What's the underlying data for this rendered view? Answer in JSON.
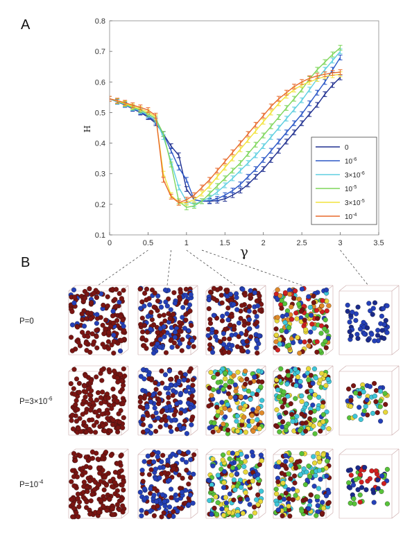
{
  "panel_labels": {
    "a": "A",
    "b": "B"
  },
  "chart_data": {
    "type": "line",
    "xlabel": "γ",
    "ylabel": "H",
    "xlim": [
      0,
      3.5
    ],
    "ylim": [
      0.1,
      0.8
    ],
    "xticks": [
      "0",
      "0.5",
      "1",
      "1.5",
      "2",
      "2.5",
      "3",
      "3.5"
    ],
    "yticks": [
      "0.1",
      "0.2",
      "0.3",
      "0.4",
      "0.5",
      "0.6",
      "0.7",
      "0.8"
    ],
    "error_bars": true,
    "legend_position": "lower-right",
    "x": [
      0.0,
      0.1,
      0.2,
      0.3,
      0.4,
      0.5,
      0.6,
      0.7,
      0.8,
      0.9,
      1.0,
      1.1,
      1.2,
      1.3,
      1.4,
      1.5,
      1.6,
      1.7,
      1.8,
      1.9,
      2.0,
      2.1,
      2.2,
      2.3,
      2.4,
      2.5,
      2.6,
      2.7,
      2.8,
      2.9,
      3.0
    ],
    "series": [
      {
        "name": "0",
        "color": "#1f2f8f",
        "values": [
          0.545,
          0.535,
          0.525,
          0.512,
          0.5,
          0.485,
          0.465,
          0.43,
          0.39,
          0.36,
          0.25,
          0.215,
          0.21,
          0.21,
          0.212,
          0.218,
          0.23,
          0.245,
          0.265,
          0.29,
          0.315,
          0.345,
          0.375,
          0.405,
          0.435,
          0.465,
          0.495,
          0.525,
          0.56,
          0.59,
          0.615
        ]
      },
      {
        "name": "10^-6",
        "color": "#2a56c6",
        "values": [
          0.545,
          0.535,
          0.525,
          0.513,
          0.502,
          0.488,
          0.47,
          0.43,
          0.375,
          0.32,
          0.28,
          0.215,
          0.21,
          0.212,
          0.218,
          0.23,
          0.245,
          0.265,
          0.29,
          0.315,
          0.345,
          0.375,
          0.405,
          0.435,
          0.465,
          0.495,
          0.53,
          0.565,
          0.6,
          0.64,
          0.68
        ]
      },
      {
        "name": "3×10^-6",
        "color": "#5ecfe0",
        "values": [
          0.545,
          0.536,
          0.527,
          0.515,
          0.505,
          0.492,
          0.475,
          0.42,
          0.34,
          0.255,
          0.21,
          0.2,
          0.21,
          0.222,
          0.24,
          0.262,
          0.285,
          0.31,
          0.335,
          0.36,
          0.39,
          0.42,
          0.45,
          0.48,
          0.51,
          0.54,
          0.575,
          0.61,
          0.64,
          0.67,
          0.7
        ]
      },
      {
        "name": "10^-5",
        "color": "#7ed65a",
        "values": [
          0.545,
          0.537,
          0.528,
          0.517,
          0.508,
          0.496,
          0.48,
          0.43,
          0.33,
          0.21,
          0.19,
          0.195,
          0.21,
          0.235,
          0.26,
          0.285,
          0.31,
          0.335,
          0.365,
          0.395,
          0.425,
          0.455,
          0.485,
          0.515,
          0.545,
          0.575,
          0.61,
          0.64,
          0.665,
          0.69,
          0.712
        ]
      },
      {
        "name": "3×10^-5",
        "color": "#f2e23a",
        "values": [
          0.545,
          0.538,
          0.53,
          0.52,
          0.512,
          0.502,
          0.485,
          0.3,
          0.23,
          0.205,
          0.205,
          0.215,
          0.235,
          0.26,
          0.29,
          0.32,
          0.35,
          0.38,
          0.41,
          0.44,
          0.47,
          0.5,
          0.53,
          0.555,
          0.575,
          0.59,
          0.6,
          0.61,
          0.618,
          0.622,
          0.625
        ]
      },
      {
        "name": "10^-4",
        "color": "#e8692a",
        "values": [
          0.545,
          0.539,
          0.532,
          0.524,
          0.517,
          0.508,
          0.49,
          0.28,
          0.225,
          0.205,
          0.215,
          0.23,
          0.255,
          0.28,
          0.31,
          0.34,
          0.37,
          0.4,
          0.43,
          0.46,
          0.49,
          0.52,
          0.545,
          0.565,
          0.585,
          0.6,
          0.612,
          0.62,
          0.625,
          0.63,
          0.632
        ]
      }
    ]
  },
  "panel_b": {
    "row_labels": [
      {
        "base": "P=0",
        "sup": ""
      },
      {
        "base": "P=3×10",
        "sup": "-6"
      },
      {
        "base": "P=10",
        "sup": "-4"
      }
    ],
    "column_gammas": [
      0.5,
      0.8,
      1.0,
      1.2,
      3.0
    ],
    "colors": {
      "dark_red": "#7a1512",
      "blue": "#2440b8",
      "navy": "#1a2a8a",
      "green": "#58c23a",
      "cyan": "#3ec6d8",
      "yellow": "#e8d83a",
      "orange": "#e08a2a",
      "red": "#d02020"
    }
  }
}
